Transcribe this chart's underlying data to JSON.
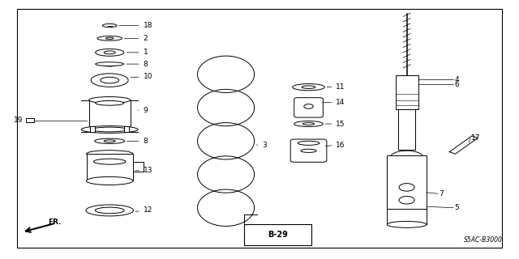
{
  "bg_color": "#ffffff",
  "line_color": "#000000",
  "fig_width": 6.4,
  "fig_height": 3.2,
  "dpi": 100,
  "watermark": "S5AC-B3000",
  "plate_label": "B-29",
  "fr_label": "FR."
}
